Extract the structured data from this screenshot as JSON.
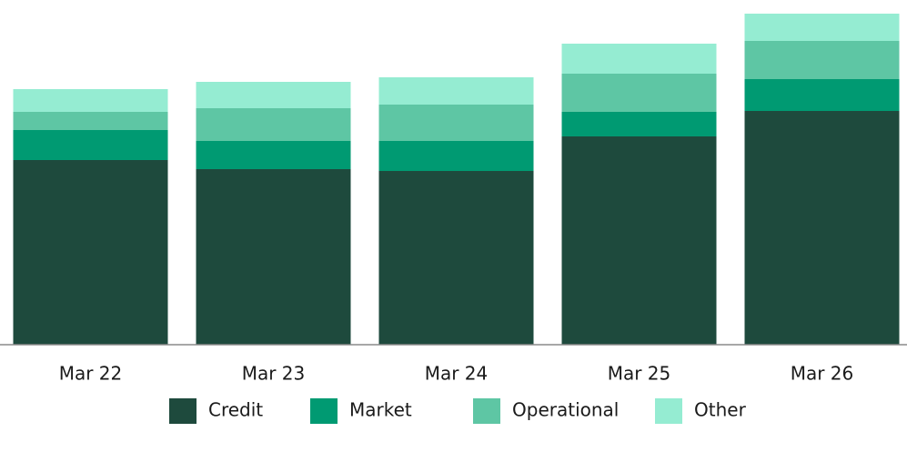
{
  "chart_data": {
    "type": "stacked_bar",
    "categories": [
      "Mar 22",
      "Mar 23",
      "Mar 24",
      "Mar 25",
      "Mar 26"
    ],
    "series": [
      {
        "name": "Credit",
        "color": "#1e4a3d",
        "values": [
          203,
          193,
          191,
          229,
          257
        ]
      },
      {
        "name": "Market",
        "color": "#009a72",
        "values": [
          33,
          31,
          33,
          27,
          35
        ]
      },
      {
        "name": "Operational",
        "color": "#5ec6a4",
        "values": [
          20,
          36,
          40,
          42,
          42
        ]
      },
      {
        "name": "Other",
        "color": "#95ecd2",
        "values": [
          25,
          29,
          30,
          33,
          30
        ]
      }
    ],
    "ylim": [
      0,
      364
    ],
    "legend": "bottom"
  }
}
